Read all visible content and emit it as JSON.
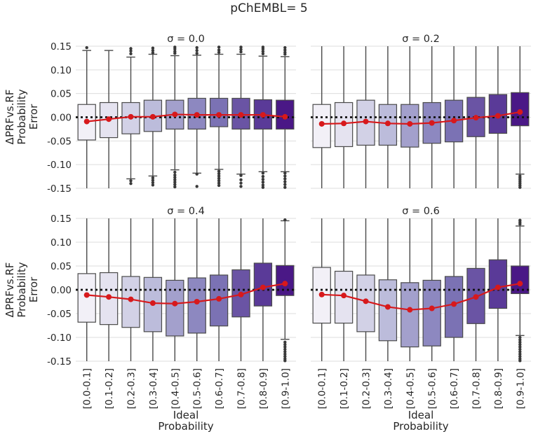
{
  "figure": {
    "suptitle": "pChEMBL= 5",
    "ylabel": "ΔPRFvs.RF\nProbability\nError",
    "xlabel": "Ideal\nProbability"
  },
  "chart_data": [
    {
      "type": "box",
      "title": "σ = 0.0",
      "categories": [
        "[0.0-0.1]",
        "[0.1-0.2]",
        "[0.2-0.3]",
        "[0.3-0.4]",
        "[0.4-0.5]",
        "[0.5-0.6]",
        "[0.6-0.7]",
        "[0.7-0.8]",
        "[0.8-0.9]",
        "[0.9-1.0]"
      ],
      "ylim": [
        -0.15,
        0.15
      ],
      "yticks": [
        -0.15,
        -0.1,
        -0.05,
        0.0,
        0.05,
        0.1,
        0.15
      ],
      "grid": true,
      "reference_line_y": 0.0,
      "boxes": [
        {
          "q1": -0.048,
          "q3": 0.027,
          "whisker_low": -0.15,
          "whisker_high": 0.141
        },
        {
          "q1": -0.043,
          "q3": 0.031,
          "whisker_low": -0.15,
          "whisker_high": 0.141
        },
        {
          "q1": -0.035,
          "q3": 0.031,
          "whisker_low": -0.13,
          "whisker_high": 0.127
        },
        {
          "q1": -0.03,
          "q3": 0.036,
          "whisker_low": -0.124,
          "whisker_high": 0.133
        },
        {
          "q1": -0.025,
          "q3": 0.036,
          "whisker_low": -0.111,
          "whisker_high": 0.13
        },
        {
          "q1": -0.025,
          "q3": 0.04,
          "whisker_low": -0.118,
          "whisker_high": 0.131
        },
        {
          "q1": -0.02,
          "q3": 0.04,
          "whisker_low": -0.11,
          "whisker_high": 0.133
        },
        {
          "q1": -0.025,
          "q3": 0.04,
          "whisker_low": -0.12,
          "whisker_high": 0.133
        },
        {
          "q1": -0.025,
          "q3": 0.037,
          "whisker_low": -0.115,
          "whisker_high": 0.129
        },
        {
          "q1": -0.025,
          "q3": 0.036,
          "whisker_low": -0.115,
          "whisker_high": 0.128
        }
      ],
      "mean_line": [
        -0.009,
        -0.004,
        0.001,
        0.001,
        0.006,
        0.005,
        0.005,
        0.005,
        0.005,
        0.001
      ],
      "outliers_high": [
        [
          0,
          0.147
        ],
        [
          2,
          0.134
        ],
        [
          2,
          0.14
        ],
        [
          2,
          0.145
        ],
        [
          3,
          0.136
        ],
        [
          3,
          0.141
        ],
        [
          3,
          0.146
        ],
        [
          4,
          0.135
        ],
        [
          4,
          0.139
        ],
        [
          4,
          0.144
        ],
        [
          4,
          0.148
        ],
        [
          5,
          0.135
        ],
        [
          5,
          0.141
        ],
        [
          5,
          0.147
        ],
        [
          6,
          0.137
        ],
        [
          6,
          0.142
        ],
        [
          6,
          0.148
        ],
        [
          7,
          0.138
        ],
        [
          7,
          0.143
        ],
        [
          7,
          0.148
        ],
        [
          8,
          0.134
        ],
        [
          8,
          0.139
        ],
        [
          8,
          0.144
        ],
        [
          8,
          0.148
        ],
        [
          9,
          0.133
        ],
        [
          9,
          0.137
        ],
        [
          9,
          0.142
        ],
        [
          9,
          0.147
        ]
      ],
      "outliers_low": [
        [
          2,
          -0.134
        ],
        [
          2,
          -0.14
        ],
        [
          3,
          -0.128
        ],
        [
          3,
          -0.133
        ],
        [
          3,
          -0.138
        ],
        [
          3,
          -0.143
        ],
        [
          4,
          -0.116
        ],
        [
          4,
          -0.122
        ],
        [
          4,
          -0.127
        ],
        [
          4,
          -0.132
        ],
        [
          4,
          -0.137
        ],
        [
          4,
          -0.142
        ],
        [
          4,
          -0.147
        ],
        [
          5,
          -0.12
        ],
        [
          5,
          -0.146
        ],
        [
          6,
          -0.114
        ],
        [
          6,
          -0.119
        ],
        [
          6,
          -0.124
        ],
        [
          6,
          -0.129
        ],
        [
          6,
          -0.134
        ],
        [
          6,
          -0.139
        ],
        [
          6,
          -0.144
        ],
        [
          7,
          -0.123
        ],
        [
          7,
          -0.132
        ],
        [
          7,
          -0.139
        ],
        [
          7,
          -0.146
        ],
        [
          8,
          -0.118
        ],
        [
          8,
          -0.125
        ],
        [
          8,
          -0.131
        ],
        [
          8,
          -0.137
        ],
        [
          8,
          -0.143
        ],
        [
          8,
          -0.148
        ],
        [
          9,
          -0.118
        ],
        [
          9,
          -0.124
        ],
        [
          9,
          -0.13
        ],
        [
          9,
          -0.136
        ],
        [
          9,
          -0.142
        ],
        [
          9,
          -0.148
        ]
      ]
    },
    {
      "type": "box",
      "title": "σ = 0.2",
      "categories": [
        "[0.0-0.1]",
        "[0.1-0.2]",
        "[0.2-0.3]",
        "[0.3-0.4]",
        "[0.4-0.5]",
        "[0.5-0.6]",
        "[0.6-0.7]",
        "[0.7-0.8]",
        "[0.8-0.9]",
        "[0.9-1.0]"
      ],
      "ylim": [
        -0.15,
        0.15
      ],
      "yticks": [
        -0.15,
        -0.1,
        -0.05,
        0.0,
        0.05,
        0.1,
        0.15
      ],
      "grid": true,
      "reference_line_y": 0.0,
      "boxes": [
        {
          "q1": -0.064,
          "q3": 0.027,
          "whisker_low": -0.15,
          "whisker_high": 0.15
        },
        {
          "q1": -0.062,
          "q3": 0.031,
          "whisker_low": -0.15,
          "whisker_high": 0.15
        },
        {
          "q1": -0.059,
          "q3": 0.036,
          "whisker_low": -0.15,
          "whisker_high": 0.15
        },
        {
          "q1": -0.059,
          "q3": 0.027,
          "whisker_low": -0.15,
          "whisker_high": 0.15
        },
        {
          "q1": -0.063,
          "q3": 0.027,
          "whisker_low": -0.15,
          "whisker_high": 0.15
        },
        {
          "q1": -0.055,
          "q3": 0.031,
          "whisker_low": -0.15,
          "whisker_high": 0.15
        },
        {
          "q1": -0.052,
          "q3": 0.036,
          "whisker_low": -0.15,
          "whisker_high": 0.15
        },
        {
          "q1": -0.041,
          "q3": 0.042,
          "whisker_low": -0.15,
          "whisker_high": 0.15
        },
        {
          "q1": -0.034,
          "q3": 0.048,
          "whisker_low": -0.15,
          "whisker_high": 0.15
        },
        {
          "q1": -0.018,
          "q3": 0.052,
          "whisker_low": -0.12,
          "whisker_high": 0.15
        }
      ],
      "mean_line": [
        -0.014,
        -0.013,
        -0.009,
        -0.013,
        -0.014,
        -0.012,
        -0.007,
        -0.001,
        0.003,
        0.011
      ],
      "outliers_high": [],
      "outliers_low": [
        [
          9,
          -0.124
        ],
        [
          9,
          -0.128
        ],
        [
          9,
          -0.132
        ],
        [
          9,
          -0.136
        ],
        [
          9,
          -0.14
        ],
        [
          9,
          -0.144
        ],
        [
          9,
          -0.148
        ]
      ]
    },
    {
      "type": "box",
      "title": "σ = 0.4",
      "categories": [
        "[0.0-0.1]",
        "[0.1-0.2]",
        "[0.2-0.3]",
        "[0.3-0.4]",
        "[0.4-0.5]",
        "[0.5-0.6]",
        "[0.6-0.7]",
        "[0.7-0.8]",
        "[0.8-0.9]",
        "[0.9-1.0]"
      ],
      "ylim": [
        -0.15,
        0.15
      ],
      "yticks": [
        -0.15,
        -0.1,
        -0.05,
        0.0,
        0.05,
        0.1,
        0.15
      ],
      "grid": true,
      "reference_line_y": 0.0,
      "boxes": [
        {
          "q1": -0.068,
          "q3": 0.034,
          "whisker_low": -0.15,
          "whisker_high": 0.15
        },
        {
          "q1": -0.073,
          "q3": 0.036,
          "whisker_low": -0.15,
          "whisker_high": 0.15
        },
        {
          "q1": -0.079,
          "q3": 0.028,
          "whisker_low": -0.15,
          "whisker_high": 0.15
        },
        {
          "q1": -0.088,
          "q3": 0.026,
          "whisker_low": -0.15,
          "whisker_high": 0.15
        },
        {
          "q1": -0.097,
          "q3": 0.02,
          "whisker_low": -0.15,
          "whisker_high": 0.15
        },
        {
          "q1": -0.091,
          "q3": 0.025,
          "whisker_low": -0.15,
          "whisker_high": 0.15
        },
        {
          "q1": -0.076,
          "q3": 0.031,
          "whisker_low": -0.15,
          "whisker_high": 0.15
        },
        {
          "q1": -0.057,
          "q3": 0.042,
          "whisker_low": -0.15,
          "whisker_high": 0.15
        },
        {
          "q1": -0.034,
          "q3": 0.056,
          "whisker_low": -0.15,
          "whisker_high": 0.15
        },
        {
          "q1": -0.012,
          "q3": 0.051,
          "whisker_low": -0.104,
          "whisker_high": 0.145
        }
      ],
      "mean_line": [
        -0.011,
        -0.015,
        -0.02,
        -0.028,
        -0.029,
        -0.025,
        -0.019,
        -0.01,
        0.005,
        0.013
      ],
      "outliers_high": [
        [
          9,
          0.147
        ]
      ],
      "outliers_low": [
        [
          9,
          -0.11
        ],
        [
          9,
          -0.115
        ],
        [
          9,
          -0.12
        ],
        [
          9,
          -0.125
        ],
        [
          9,
          -0.13
        ],
        [
          9,
          -0.135
        ],
        [
          9,
          -0.14
        ],
        [
          9,
          -0.145
        ],
        [
          9,
          -0.149
        ]
      ]
    },
    {
      "type": "box",
      "title": "σ = 0.6",
      "categories": [
        "[0.0-0.1]",
        "[0.1-0.2]",
        "[0.2-0.3]",
        "[0.3-0.4]",
        "[0.4-0.5]",
        "[0.5-0.6]",
        "[0.6-0.7]",
        "[0.7-0.8]",
        "[0.8-0.9]",
        "[0.9-1.0]"
      ],
      "ylim": [
        -0.15,
        0.15
      ],
      "yticks": [
        -0.15,
        -0.1,
        -0.05,
        0.0,
        0.05,
        0.1,
        0.15
      ],
      "grid": true,
      "reference_line_y": 0.0,
      "boxes": [
        {
          "q1": -0.07,
          "q3": 0.047,
          "whisker_low": -0.15,
          "whisker_high": 0.15
        },
        {
          "q1": -0.07,
          "q3": 0.039,
          "whisker_low": -0.15,
          "whisker_high": 0.15
        },
        {
          "q1": -0.088,
          "q3": 0.031,
          "whisker_low": -0.15,
          "whisker_high": 0.15
        },
        {
          "q1": -0.107,
          "q3": 0.021,
          "whisker_low": -0.15,
          "whisker_high": 0.15
        },
        {
          "q1": -0.12,
          "q3": 0.015,
          "whisker_low": -0.15,
          "whisker_high": 0.15
        },
        {
          "q1": -0.118,
          "q3": 0.02,
          "whisker_low": -0.15,
          "whisker_high": 0.15
        },
        {
          "q1": -0.1,
          "q3": 0.028,
          "whisker_low": -0.15,
          "whisker_high": 0.15
        },
        {
          "q1": -0.071,
          "q3": 0.045,
          "whisker_low": -0.15,
          "whisker_high": 0.15
        },
        {
          "q1": -0.039,
          "q3": 0.063,
          "whisker_low": -0.15,
          "whisker_high": 0.15
        },
        {
          "q1": -0.008,
          "q3": 0.05,
          "whisker_low": -0.096,
          "whisker_high": 0.134
        }
      ],
      "mean_line": [
        -0.01,
        -0.012,
        -0.024,
        -0.036,
        -0.042,
        -0.039,
        -0.03,
        -0.015,
        0.005,
        0.013
      ],
      "outliers_high": [
        [
          9,
          0.138
        ],
        [
          9,
          0.142
        ],
        [
          9,
          0.146
        ]
      ],
      "outliers_low": [
        [
          9,
          -0.1
        ],
        [
          9,
          -0.105
        ],
        [
          9,
          -0.11
        ],
        [
          9,
          -0.115
        ],
        [
          9,
          -0.12
        ],
        [
          9,
          -0.125
        ],
        [
          9,
          -0.13
        ],
        [
          9,
          -0.135
        ],
        [
          9,
          -0.14
        ],
        [
          9,
          -0.145
        ],
        [
          9,
          -0.149
        ]
      ]
    }
  ],
  "colors": {
    "box_fills": [
      "#f2f0f7",
      "#e5e3f0",
      "#d2d1e6",
      "#bcbcdb",
      "#a3a0cc",
      "#8d88c0",
      "#7b72b4",
      "#6a54a4",
      "#5a3a98",
      "#4a1886"
    ],
    "box_edge": "#4a4a4a",
    "mean_line": "#d7191c",
    "reference_line": "#111111",
    "grid": "#dddddd",
    "text": "#262626"
  }
}
